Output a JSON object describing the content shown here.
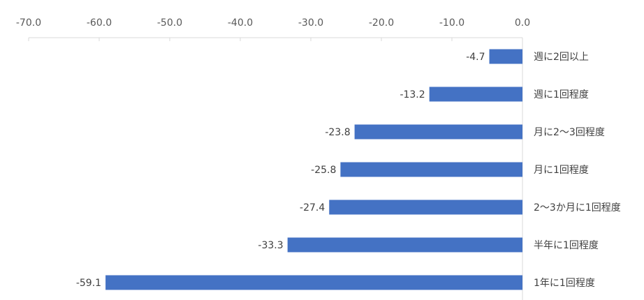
{
  "chart_data": {
    "type": "bar",
    "orientation": "horizontal",
    "categories": [
      "週に2回以上",
      "週に1回程度",
      "月に2～3回程度",
      "月に1回程度",
      "2～3か月に1回程度",
      "半年に1回程度",
      "1年に1回程度"
    ],
    "values": [
      -4.7,
      -13.2,
      -23.8,
      -25.8,
      -27.4,
      -33.3,
      -59.1
    ],
    "value_labels": [
      "-4.7",
      "-13.2",
      "-23.8",
      "-25.8",
      "-27.4",
      "-33.3",
      "-59.1"
    ],
    "x_ticks": [
      "-70.0",
      "-60.0",
      "-50.0",
      "-40.0",
      "-30.0",
      "-20.0",
      "-10.0",
      "0.0"
    ],
    "xlim": [
      -70,
      0
    ],
    "axis_position": "top",
    "category_label_position": "right",
    "grid": false,
    "legend": "none",
    "bar_color": "#4472C4"
  }
}
